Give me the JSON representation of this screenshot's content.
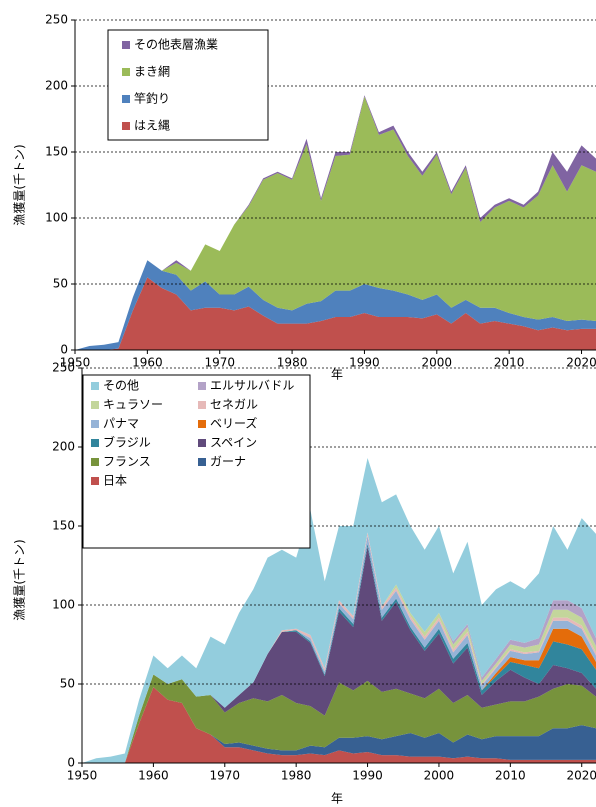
{
  "chart_data": [
    {
      "type": "area",
      "stacked": true,
      "xlabel": "年",
      "ylabel": "漁獲量(千トン)",
      "x": [
        1950,
        1952,
        1954,
        1956,
        1958,
        1960,
        1962,
        1964,
        1966,
        1968,
        1970,
        1972,
        1974,
        1976,
        1978,
        1980,
        1982,
        1984,
        1986,
        1988,
        1990,
        1992,
        1994,
        1996,
        1998,
        2000,
        2002,
        2004,
        2006,
        2008,
        2010,
        2012,
        2014,
        2016,
        2018,
        2020,
        2022
      ],
      "xlim": [
        1950,
        2022
      ],
      "ylim": [
        0,
        250
      ],
      "xticks": [
        1950,
        1960,
        1970,
        1980,
        1990,
        2000,
        2010,
        2020
      ],
      "yticks": [
        0,
        50,
        100,
        150,
        200,
        250
      ],
      "grid": true,
      "legend": "upper left",
      "series": [
        {
          "name": "その他表層漁業",
          "color": "#8064a2",
          "values": [
            0,
            0,
            0,
            0,
            0,
            0,
            0,
            2,
            0,
            0,
            0,
            0,
            1,
            1,
            1,
            1,
            4,
            2,
            3,
            2,
            1,
            2,
            3,
            3,
            3,
            2,
            2,
            2,
            3,
            2,
            2,
            2,
            3,
            10,
            15,
            15,
            10
          ]
        },
        {
          "name": "まき網",
          "color": "#9bbb59",
          "values": [
            0,
            0,
            0,
            0,
            0,
            0,
            0,
            9,
            15,
            28,
            33,
            53,
            61,
            91,
            102,
            99,
            121,
            76,
            102,
            103,
            142,
            116,
            122,
            105,
            94,
            106,
            86,
            100,
            65,
            76,
            85,
            83,
            94,
            115,
            98,
            117,
            113
          ]
        },
        {
          "name": "竿釣り",
          "color": "#4f81bd",
          "values": [
            0,
            3,
            4,
            5,
            10,
            13,
            13,
            15,
            15,
            20,
            10,
            12,
            15,
            12,
            12,
            10,
            15,
            15,
            20,
            20,
            22,
            22,
            20,
            17,
            14,
            15,
            12,
            10,
            12,
            10,
            8,
            7,
            8,
            8,
            7,
            7,
            6
          ]
        },
        {
          "name": "はえ縄",
          "color": "#c0504d",
          "values": [
            0,
            0,
            0,
            1,
            30,
            55,
            47,
            42,
            30,
            32,
            32,
            30,
            33,
            26,
            20,
            20,
            20,
            22,
            25,
            25,
            28,
            25,
            25,
            25,
            24,
            27,
            20,
            28,
            20,
            22,
            20,
            18,
            15,
            17,
            15,
            16,
            16
          ]
        }
      ]
    },
    {
      "type": "area",
      "stacked": true,
      "xlabel": "年",
      "ylabel": "漁獲量(千トン)",
      "x": [
        1950,
        1952,
        1954,
        1956,
        1958,
        1960,
        1962,
        1964,
        1966,
        1968,
        1970,
        1972,
        1974,
        1976,
        1978,
        1980,
        1982,
        1984,
        1986,
        1988,
        1990,
        1992,
        1994,
        1996,
        1998,
        2000,
        2002,
        2004,
        2006,
        2008,
        2010,
        2012,
        2014,
        2016,
        2018,
        2020,
        2022
      ],
      "xlim": [
        1950,
        2022
      ],
      "ylim": [
        0,
        250
      ],
      "xticks": [
        1950,
        1960,
        1970,
        1980,
        1990,
        2000,
        2010,
        2020
      ],
      "yticks": [
        0,
        50,
        100,
        150,
        200,
        250
      ],
      "grid": true,
      "legend": "upper left",
      "series": [
        {
          "name": "その他",
          "color": "#93cddd",
          "values": [
            0,
            3,
            4,
            6,
            10,
            12,
            10,
            15,
            18,
            37,
            40,
            52,
            59,
            61,
            51,
            45,
            79,
            55,
            47,
            57,
            47,
            66,
            57,
            55,
            52,
            55,
            43,
            52,
            46,
            44,
            37,
            34,
            41,
            47,
            32,
            57,
            66
          ]
        },
        {
          "name": "エルサルバドル",
          "color": "#b3a2c7",
          "values": [
            0,
            0,
            0,
            0,
            0,
            0,
            0,
            0,
            0,
            0,
            0,
            0,
            0,
            0,
            0,
            0,
            0,
            0,
            0,
            0,
            0,
            0,
            0,
            0,
            0,
            0,
            2,
            2,
            2,
            3,
            3,
            3,
            4,
            6,
            6,
            6,
            5
          ]
        },
        {
          "name": "キュラソー",
          "color": "#c3d69b",
          "values": [
            0,
            0,
            0,
            0,
            0,
            0,
            0,
            0,
            0,
            0,
            0,
            0,
            0,
            0,
            0,
            0,
            0,
            0,
            0,
            0,
            0,
            0,
            2,
            2,
            3,
            3,
            3,
            3,
            2,
            2,
            3,
            3,
            4,
            5,
            5,
            5,
            4
          ]
        },
        {
          "name": "セネガル",
          "color": "#e6b9b8",
          "values": [
            0,
            0,
            0,
            0,
            0,
            0,
            0,
            0,
            0,
            0,
            0,
            0,
            0,
            0,
            1,
            1,
            2,
            2,
            2,
            2,
            2,
            2,
            2,
            2,
            2,
            2,
            2,
            2,
            1,
            1,
            1,
            1,
            1,
            2,
            2,
            2,
            2
          ]
        },
        {
          "name": "パナマ",
          "color": "#95b3d7",
          "values": [
            0,
            0,
            0,
            0,
            0,
            0,
            0,
            0,
            0,
            0,
            0,
            0,
            0,
            0,
            0,
            0,
            2,
            2,
            3,
            3,
            5,
            5,
            5,
            5,
            5,
            5,
            4,
            5,
            3,
            3,
            4,
            4,
            5,
            5,
            5,
            5,
            4
          ]
        },
        {
          "name": "ベリーズ",
          "color": "#e46c0a",
          "values": [
            0,
            0,
            0,
            0,
            0,
            0,
            0,
            0,
            0,
            0,
            0,
            0,
            0,
            0,
            0,
            0,
            0,
            0,
            0,
            0,
            0,
            0,
            0,
            0,
            0,
            0,
            0,
            0,
            0,
            2,
            3,
            3,
            5,
            8,
            10,
            8,
            5
          ]
        },
        {
          "name": "ブラジル",
          "color": "#31859c",
          "values": [
            0,
            0,
            0,
            0,
            0,
            0,
            0,
            0,
            0,
            0,
            0,
            0,
            0,
            0,
            0,
            1,
            1,
            1,
            2,
            2,
            2,
            2,
            2,
            2,
            2,
            3,
            3,
            3,
            3,
            3,
            5,
            8,
            10,
            15,
            15,
            15,
            12
          ]
        },
        {
          "name": "スペイン",
          "color": "#604a7b",
          "values": [
            0,
            0,
            0,
            0,
            0,
            0,
            0,
            0,
            0,
            0,
            3,
            5,
            10,
            30,
            40,
            45,
            40,
            25,
            45,
            40,
            85,
            45,
            55,
            40,
            30,
            35,
            25,
            30,
            8,
            15,
            20,
            15,
            8,
            15,
            10,
            8,
            5
          ]
        },
        {
          "name": "フランス",
          "color": "#77933c",
          "values": [
            0,
            0,
            0,
            0,
            5,
            8,
            10,
            15,
            20,
            25,
            20,
            25,
            30,
            30,
            35,
            30,
            25,
            20,
            35,
            30,
            35,
            30,
            30,
            25,
            25,
            28,
            25,
            25,
            20,
            20,
            22,
            22,
            25,
            25,
            28,
            25,
            20
          ]
        },
        {
          "name": "ガーナ",
          "color": "#376092",
          "values": [
            0,
            0,
            0,
            0,
            0,
            0,
            0,
            0,
            0,
            0,
            2,
            3,
            3,
            3,
            3,
            3,
            5,
            5,
            8,
            10,
            10,
            10,
            12,
            15,
            12,
            15,
            10,
            14,
            12,
            14,
            15,
            15,
            15,
            20,
            20,
            22,
            20
          ]
        },
        {
          "name": "日本",
          "color": "#c0504d",
          "values": [
            0,
            0,
            0,
            0,
            25,
            48,
            40,
            38,
            22,
            18,
            10,
            10,
            8,
            6,
            5,
            5,
            6,
            5,
            8,
            6,
            7,
            5,
            5,
            4,
            4,
            4,
            3,
            4,
            3,
            3,
            2,
            2,
            2,
            2,
            2,
            2,
            2
          ]
        }
      ]
    }
  ]
}
